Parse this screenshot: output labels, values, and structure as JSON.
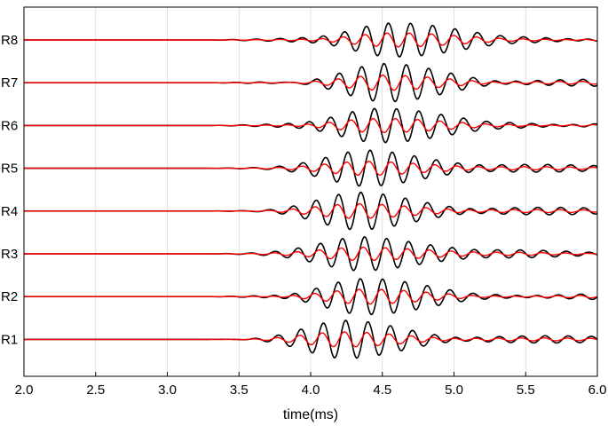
{
  "chart_data": {
    "type": "line",
    "title": "",
    "xlabel": "time(ms)",
    "ylabel": "",
    "xlim": [
      2.0,
      6.0
    ],
    "x_ticks": [
      "2.0",
      "2.5",
      "3.0",
      "3.5",
      "4.0",
      "4.5",
      "5.0",
      "5.5",
      "6.0"
    ],
    "x_tick_values": [
      2.0,
      2.5,
      3.0,
      3.5,
      4.0,
      4.5,
      5.0,
      5.5,
      6.0
    ],
    "grid": "vertical",
    "legend": "none",
    "traces": [
      {
        "name": "R1",
        "onset_ms": 3.3,
        "peak_ms": 4.25,
        "period_ms": 0.155
      },
      {
        "name": "R2",
        "onset_ms": 3.3,
        "peak_ms": 4.35,
        "period_ms": 0.155
      },
      {
        "name": "R3",
        "onset_ms": 3.3,
        "peak_ms": 4.38,
        "period_ms": 0.155
      },
      {
        "name": "R4",
        "onset_ms": 3.3,
        "peak_ms": 4.35,
        "period_ms": 0.155
      },
      {
        "name": "R5",
        "onset_ms": 3.3,
        "peak_ms": 4.42,
        "period_ms": 0.155
      },
      {
        "name": "R6",
        "onset_ms": 3.3,
        "peak_ms": 4.45,
        "period_ms": 0.155
      },
      {
        "name": "R7",
        "onset_ms": 3.3,
        "peak_ms": 4.52,
        "period_ms": 0.155
      },
      {
        "name": "R8",
        "onset_ms": 3.3,
        "peak_ms": 4.55,
        "period_ms": 0.155
      }
    ],
    "series": [
      {
        "color": "#000000",
        "relative_amplitude": 1.0
      },
      {
        "color": "#ff0000",
        "relative_amplitude": 0.4
      }
    ]
  }
}
